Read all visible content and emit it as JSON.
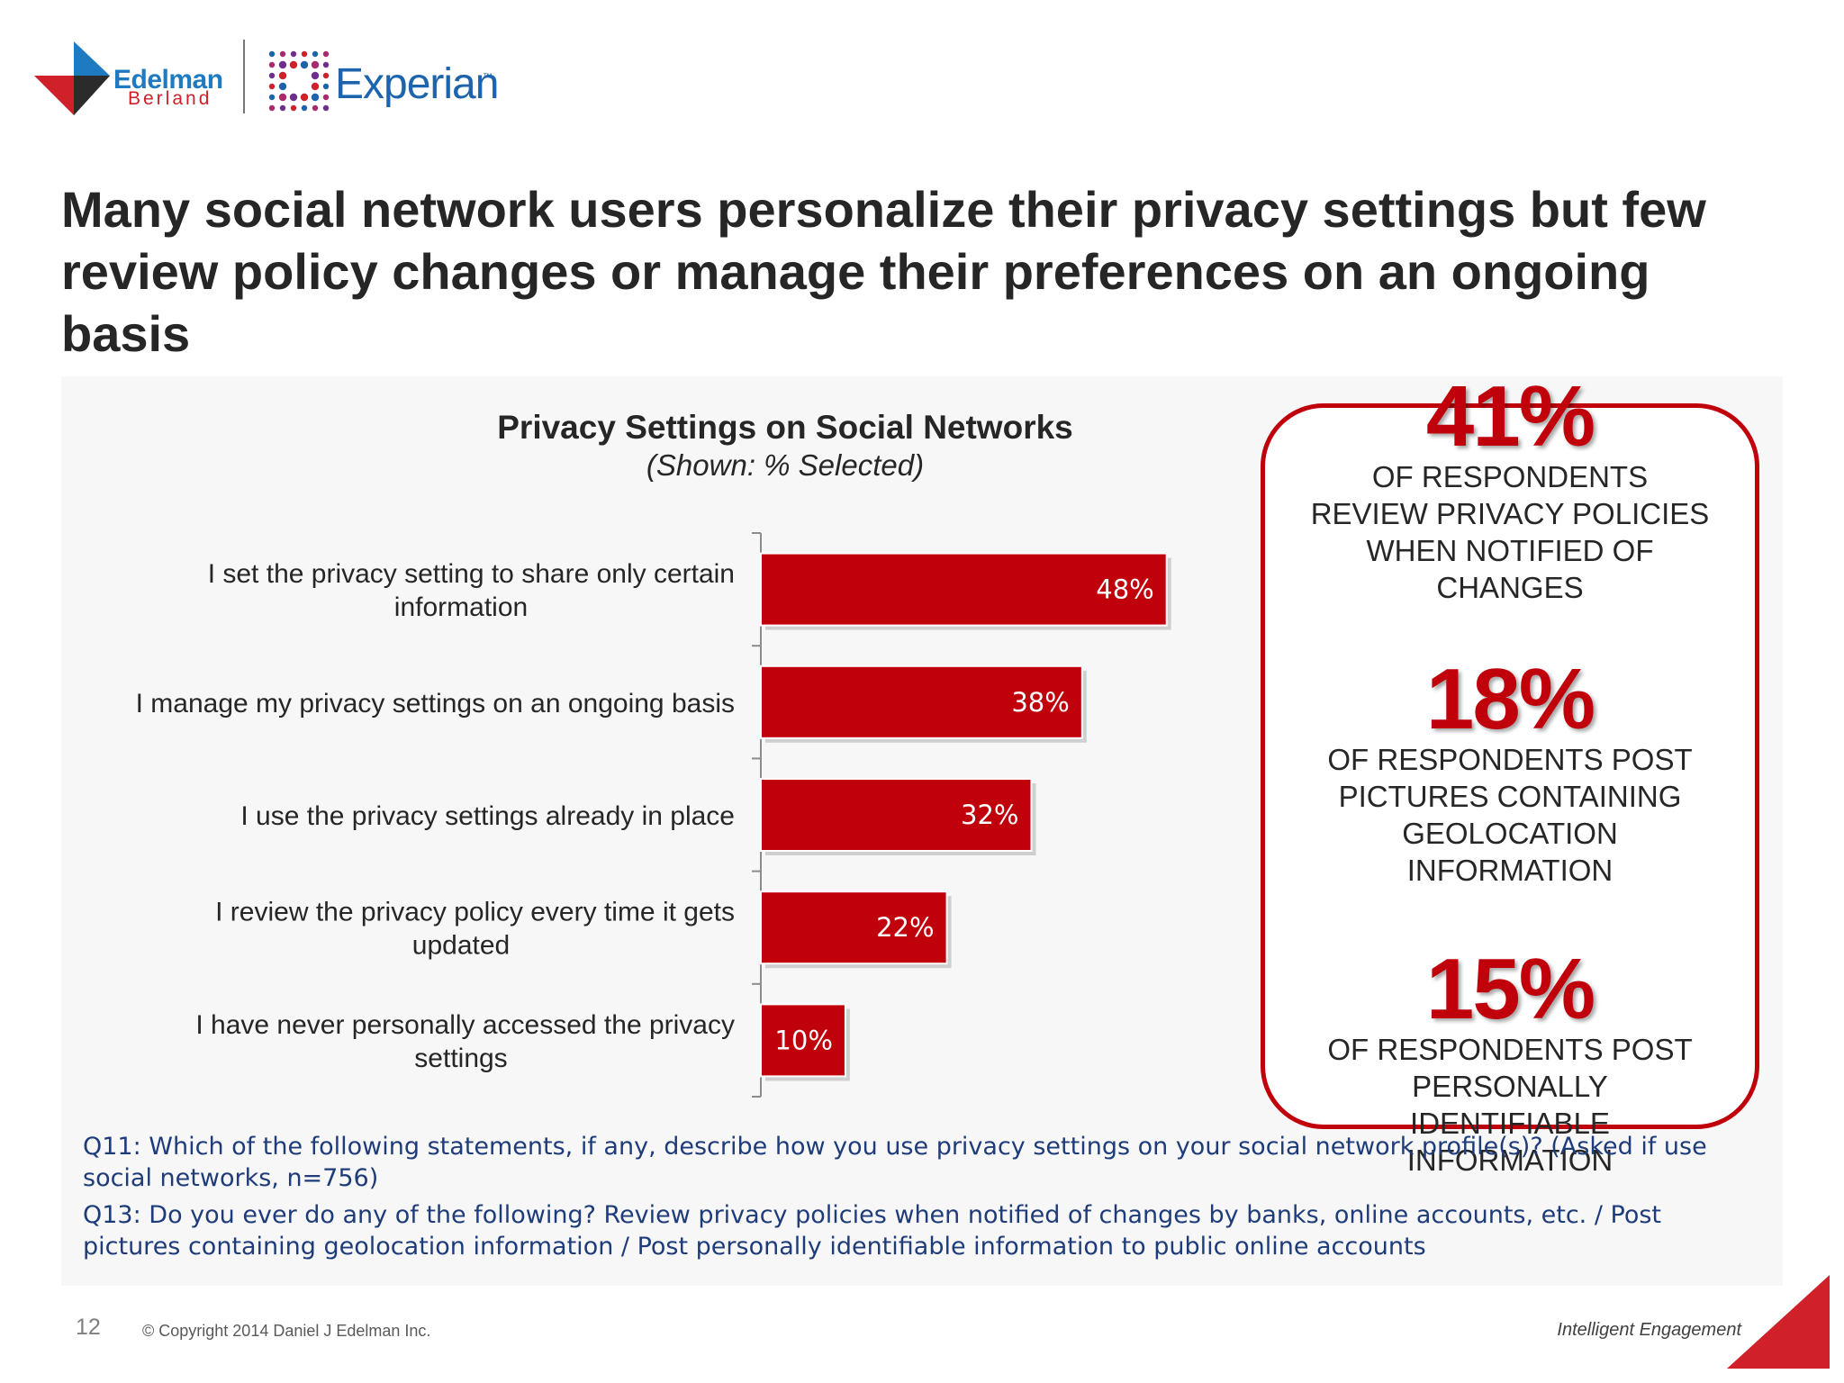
{
  "logos": {
    "edelman_name": "Edelman",
    "edelman_sub": "Berland",
    "experian_name": "Experian",
    "experian_tm": "™"
  },
  "headline": "Many social network users personalize their privacy settings but few review policy changes or manage their preferences on an ongoing basis",
  "chart_data": {
    "type": "bar",
    "orientation": "horizontal",
    "title": "Privacy Settings on Social Networks",
    "subtitle": "(Shown: % Selected)",
    "categories": [
      [
        "I set the privacy setting to share only certain",
        "information"
      ],
      [
        "I manage my privacy settings on an ongoing basis"
      ],
      [
        "I use the privacy settings already in place"
      ],
      [
        "I review the privacy policy every time it gets",
        "updated"
      ],
      [
        "I have never personally accessed the privacy",
        "settings"
      ]
    ],
    "values": [
      48,
      38,
      32,
      22,
      10
    ],
    "value_labels": [
      "48%",
      "38%",
      "32%",
      "22%",
      "10%"
    ],
    "unit": "%",
    "bar_color": "#c0000a",
    "grid": false,
    "legend": false
  },
  "stats": [
    {
      "pct": "41%",
      "lines": [
        "OF RESPONDENTS",
        "REVIEW PRIVACY POLICIES",
        "WHEN NOTIFIED OF",
        "CHANGES"
      ]
    },
    {
      "pct": "18%",
      "lines": [
        "OF RESPONDENTS POST",
        "PICTURES CONTAINING",
        "GEOLOCATION",
        "INFORMATION"
      ]
    },
    {
      "pct": "15%",
      "lines": [
        "OF RESPONDENTS POST",
        "PERSONALLY",
        "IDENTIFIABLE",
        "INFORMATION"
      ]
    }
  ],
  "stats_border_color": "#c0000a",
  "footnotes": {
    "q11": "Q11: Which of the following statements, if any, describe how you use privacy settings on your social network profile(s)? (Asked if use social networks, n=756)",
    "q13": "Q13: Do you ever do any of the following? Review privacy policies when notified of changes by banks, online accounts, etc. / Post pictures containing geolocation information / Post personally identifiable information to public online accounts"
  },
  "footer": {
    "page_number": "12",
    "copyright": "© Copyright 2014 Daniel J Edelman Inc.",
    "tagline": "Intelligent Engagement"
  }
}
